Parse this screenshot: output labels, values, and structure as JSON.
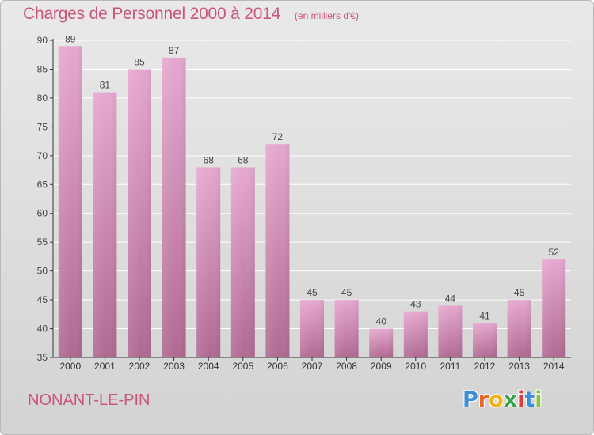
{
  "title": "Charges de Personnel 2000 à 2014",
  "subtitle": "(en milliers d'€)",
  "commune": "NONANT-LE-PIN",
  "brand": {
    "letters": [
      "P",
      "r",
      "o",
      "x",
      "i",
      "t",
      "i"
    ],
    "colors": [
      "#3a8fd8",
      "#e8662a",
      "#f0b21c",
      "#3aa44a",
      "#e03a3a",
      "#3a8fd8",
      "#8bc43f"
    ]
  },
  "colors": {
    "bar_light": "#e6a8cf",
    "bar_dark": "#b06a92",
    "label": "#444444",
    "axis": "#333333",
    "grid": "#ffffff",
    "accent": "#cc5577"
  },
  "chart_data": {
    "type": "bar",
    "title": "Charges de Personnel 2000 à 2014",
    "subtitle": "(en milliers d'€)",
    "categories": [
      "2000",
      "2001",
      "2002",
      "2003",
      "2004",
      "2005",
      "2006",
      "2007",
      "2008",
      "2009",
      "2010",
      "2011",
      "2012",
      "2013",
      "2014"
    ],
    "values": [
      89,
      81,
      85,
      87,
      68,
      68,
      72,
      45,
      45,
      40,
      43,
      44,
      41,
      45,
      52
    ],
    "ylim": [
      35,
      90
    ],
    "yticks": [
      35,
      40,
      45,
      50,
      55,
      60,
      65,
      70,
      75,
      80,
      85,
      90
    ],
    "grid": true,
    "data_labels": true
  }
}
